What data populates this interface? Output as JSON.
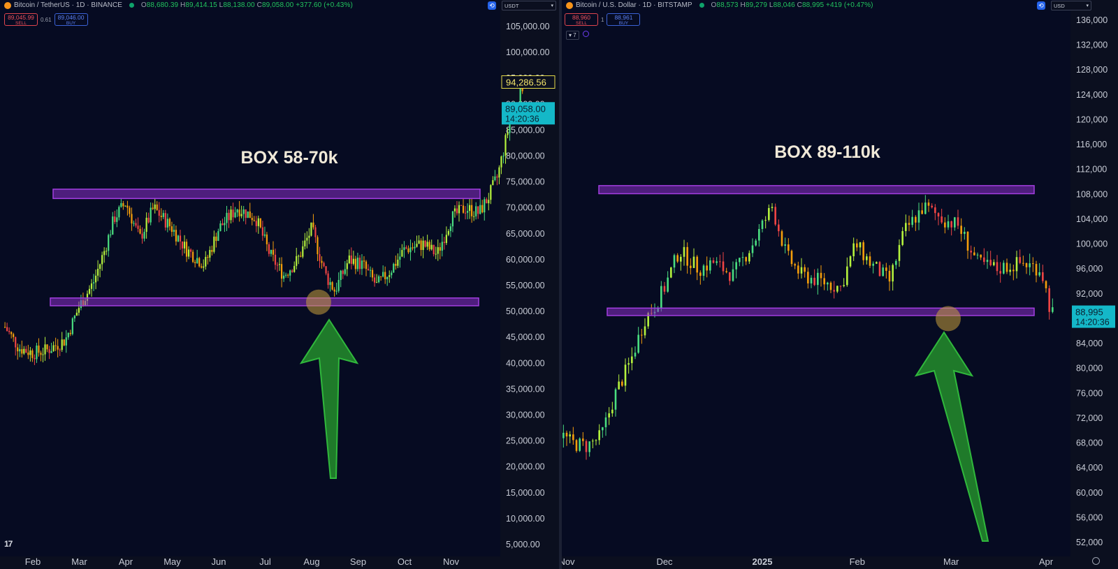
{
  "left": {
    "symbol": "Bitcoin / TetherUS · 1D · BINANCE",
    "ohlc": {
      "o": "88,680.39",
      "h": "89,414.15",
      "l": "88,138.00",
      "c": "89,058.00",
      "chg": "+377.60 (+0.43%)"
    },
    "sell_price": "89,045.99",
    "sell_label": "SELL",
    "spread": "0.61",
    "buy_price": "89,046.00",
    "buy_label": "BUY",
    "currency": "USDT",
    "colors": {
      "coin": "#f7931a",
      "up": "#a3e635",
      "down": "#ef4444",
      "box": "#8b2fc9"
    }
  },
  "right": {
    "symbol": "Bitcoin / U.S. Dollar · 1D · BITSTAMP",
    "ohlc": {
      "o": "88,573",
      "h": "89,279",
      "l": "88,046",
      "c": "88,995",
      "chg": "+419 (+0.47%)"
    },
    "sell_price": "88,960",
    "sell_label": "SELL",
    "spread": "1",
    "buy_price": "88,961",
    "buy_label": "BUY",
    "currency": "USD",
    "indicator_chip": "7",
    "colors": {
      "coin": "#f7931a"
    }
  },
  "tv_logo": "17",
  "chart_data": [
    {
      "type": "candlestick",
      "title": "BOX 58-70k",
      "ylim": [
        3000,
        108000
      ],
      "y_ticks": [
        "105,000.00",
        "100,000.00",
        "95,000.00",
        "90,000.00",
        "85,000.00",
        "80,000.00",
        "75,000.00",
        "70,000.00",
        "65,000.00",
        "60,000.00",
        "55,000.00",
        "50,000.00",
        "45,000.00",
        "40,000.00",
        "35,000.00",
        "30,000.00",
        "25,000.00",
        "20,000.00",
        "15,000.00",
        "10,000.00",
        "5,000.00"
      ],
      "x_ticks": [
        "Feb",
        "Mar",
        "Apr",
        "May",
        "Jun",
        "Jul",
        "Aug",
        "Sep",
        "Oct",
        "Nov"
      ],
      "price_labels": {
        "high_marker": "94,286.56",
        "last": "89,058.00",
        "countdown": "14:20:36"
      },
      "boxes": [
        {
          "top": 73600,
          "bottom": 71800
        },
        {
          "top": 52600,
          "bottom": 51100
        }
      ],
      "highlight": {
        "month_index": 6.15,
        "value": 51800
      },
      "arrow": "up",
      "series": [
        {
          "month": -0.6,
          "value": 47000
        },
        {
          "month": -0.3,
          "value": 43000
        },
        {
          "month": 0.0,
          "value": 42000
        },
        {
          "month": 0.3,
          "value": 42500
        },
        {
          "month": 0.7,
          "value": 44500
        },
        {
          "month": 1.0,
          "value": 51000
        },
        {
          "month": 1.3,
          "value": 55500
        },
        {
          "month": 1.55,
          "value": 62000
        },
        {
          "month": 1.75,
          "value": 68000
        },
        {
          "month": 2.0,
          "value": 71000
        },
        {
          "month": 2.3,
          "value": 64000
        },
        {
          "month": 2.6,
          "value": 70000
        },
        {
          "month": 3.0,
          "value": 66000
        },
        {
          "month": 3.3,
          "value": 62000
        },
        {
          "month": 3.7,
          "value": 59000
        },
        {
          "month": 4.0,
          "value": 66000
        },
        {
          "month": 4.4,
          "value": 70000
        },
        {
          "month": 4.8,
          "value": 68000
        },
        {
          "month": 5.1,
          "value": 61000
        },
        {
          "month": 5.4,
          "value": 57000
        },
        {
          "month": 5.7,
          "value": 60000
        },
        {
          "month": 6.0,
          "value": 66000
        },
        {
          "month": 6.3,
          "value": 57000
        },
        {
          "month": 6.5,
          "value": 54000
        },
        {
          "month": 6.8,
          "value": 60000
        },
        {
          "month": 7.1,
          "value": 59000
        },
        {
          "month": 7.4,
          "value": 55000
        },
        {
          "month": 7.7,
          "value": 58000
        },
        {
          "month": 8.0,
          "value": 62000
        },
        {
          "month": 8.4,
          "value": 63000
        },
        {
          "month": 8.7,
          "value": 61000
        },
        {
          "month": 9.0,
          "value": 68000
        },
        {
          "month": 9.3,
          "value": 70000
        },
        {
          "month": 9.6,
          "value": 69000
        },
        {
          "month": 9.8,
          "value": 72000
        },
        {
          "month": 10.0,
          "value": 76000
        },
        {
          "month": 10.15,
          "value": 82000
        },
        {
          "month": 10.3,
          "value": 88000
        },
        {
          "month": 10.45,
          "value": 91000
        },
        {
          "month": 10.55,
          "value": 94000
        }
      ]
    },
    {
      "type": "candlestick",
      "title": "BOX 89-110k",
      "ylim": [
        50500,
        137000
      ],
      "y_ticks": [
        "136,000",
        "132,000",
        "128,000",
        "124,000",
        "120,000",
        "116,000",
        "112,000",
        "108,000",
        "104,000",
        "100,000",
        "96,000",
        "92,000",
        "88,995",
        "84,000",
        "80,000",
        "76,000",
        "72,000",
        "68,000",
        "64,000",
        "60,000",
        "56,000",
        "52,000"
      ],
      "x_ticks": [
        "Nov",
        "Dec",
        "2025",
        "Feb",
        "Mar",
        "Apr"
      ],
      "price_labels": {
        "last": "88,995",
        "countdown": "14:20:36"
      },
      "boxes": [
        {
          "top": 109400,
          "bottom": 108100
        },
        {
          "top": 89700,
          "bottom": 88500
        }
      ],
      "highlight": {
        "month_index": 4.0,
        "value": 88000
      },
      "arrow": "up",
      "series": [
        {
          "month": 0.0,
          "value": 70000
        },
        {
          "month": 0.15,
          "value": 68000
        },
        {
          "month": 0.3,
          "value": 67500
        },
        {
          "month": 0.45,
          "value": 69000
        },
        {
          "month": 0.6,
          "value": 76000
        },
        {
          "month": 0.75,
          "value": 81000
        },
        {
          "month": 0.9,
          "value": 88000
        },
        {
          "month": 1.0,
          "value": 90000
        },
        {
          "month": 1.1,
          "value": 93000
        },
        {
          "month": 1.25,
          "value": 99000
        },
        {
          "month": 1.45,
          "value": 96000
        },
        {
          "month": 1.6,
          "value": 97000
        },
        {
          "month": 1.8,
          "value": 95000
        },
        {
          "month": 2.0,
          "value": 100000
        },
        {
          "month": 2.2,
          "value": 106000
        },
        {
          "month": 2.35,
          "value": 98000
        },
        {
          "month": 2.5,
          "value": 95000
        },
        {
          "month": 2.7,
          "value": 94000
        },
        {
          "month": 2.9,
          "value": 93000
        },
        {
          "month": 3.05,
          "value": 100000
        },
        {
          "month": 3.2,
          "value": 97000
        },
        {
          "month": 3.4,
          "value": 94000
        },
        {
          "month": 3.55,
          "value": 102000
        },
        {
          "month": 3.75,
          "value": 106000
        },
        {
          "month": 3.95,
          "value": 104000
        },
        {
          "month": 4.1,
          "value": 103000
        },
        {
          "month": 4.3,
          "value": 97000
        },
        {
          "month": 4.5,
          "value": 96000
        },
        {
          "month": 4.75,
          "value": 97000
        },
        {
          "month": 4.95,
          "value": 96000
        },
        {
          "month": 5.05,
          "value": 89000
        }
      ]
    }
  ]
}
